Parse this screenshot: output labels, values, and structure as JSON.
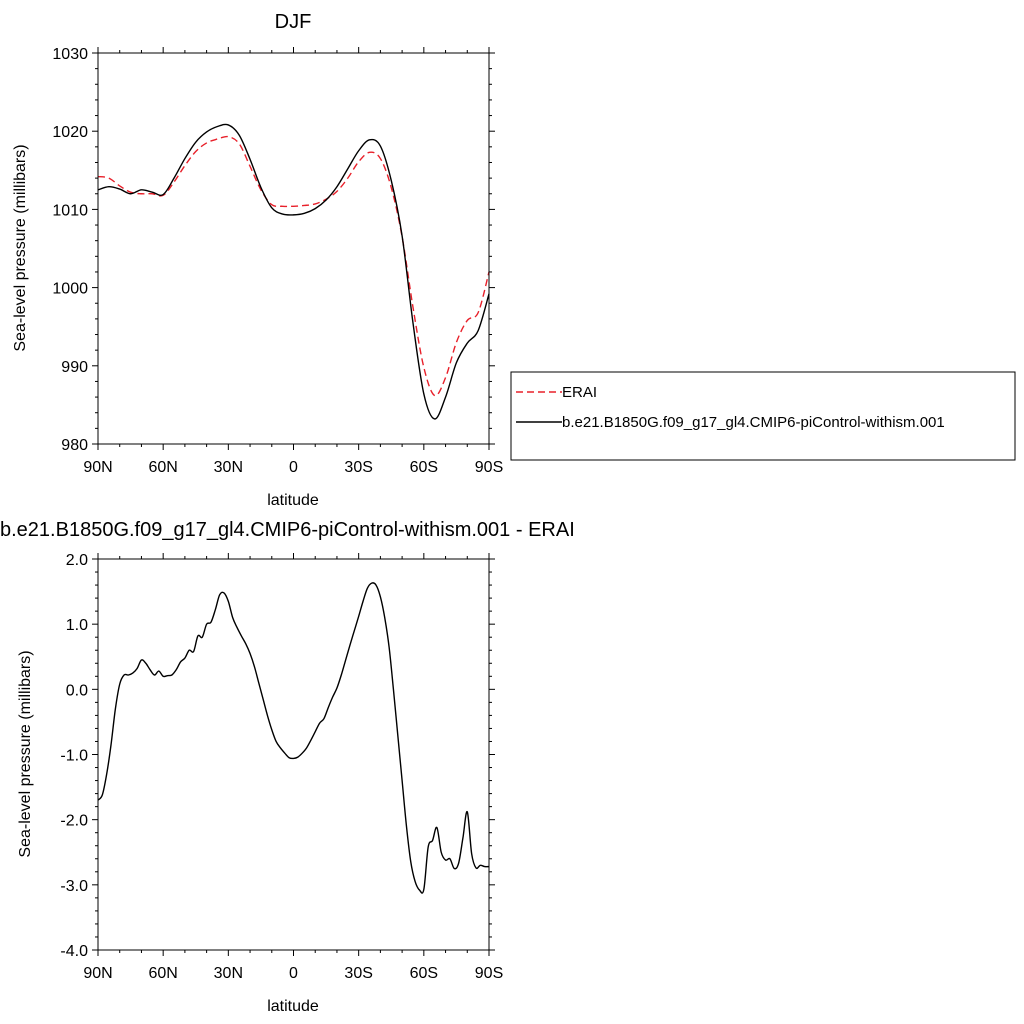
{
  "chart_data": [
    {
      "type": "line",
      "title": "DJF",
      "xlabel": "latitude",
      "ylabel": "Sea-level pressure (millibars)",
      "xlim": [
        90,
        -90
      ],
      "ylim": [
        980,
        1030
      ],
      "x_ticks": [
        90,
        60,
        30,
        0,
        -30,
        -60,
        -90
      ],
      "x_tick_labels": [
        "90N",
        "60N",
        "30N",
        "0",
        "30S",
        "60S",
        "90S"
      ],
      "y_ticks": [
        980,
        990,
        1000,
        1010,
        1020,
        1030
      ],
      "y_tick_labels": [
        "980",
        "990",
        "1000",
        "1010",
        "1020",
        "1030"
      ],
      "legend_position": "right",
      "series": [
        {
          "name": "ERAI",
          "color": "#e8202a",
          "dash": "dashed",
          "x": [
            90,
            85,
            80,
            75,
            70,
            65,
            60,
            55,
            50,
            45,
            40,
            35,
            30,
            25,
            20,
            15,
            10,
            5,
            0,
            -5,
            -10,
            -15,
            -20,
            -25,
            -30,
            -35,
            -40,
            -45,
            -50,
            -55,
            -60,
            -65,
            -70,
            -75,
            -80,
            -85,
            -90
          ],
          "y": [
            1014.2,
            1014.0,
            1013.0,
            1012.2,
            1012.0,
            1012.0,
            1011.8,
            1013.5,
            1015.6,
            1017.4,
            1018.5,
            1019.0,
            1019.3,
            1018.4,
            1015.5,
            1012.5,
            1010.6,
            1010.4,
            1010.4,
            1010.5,
            1010.7,
            1011.3,
            1012.3,
            1014.0,
            1016.1,
            1017.3,
            1016.5,
            1012.8,
            1006.5,
            997.5,
            989.8,
            986.2,
            988.5,
            993.0,
            995.8,
            996.8,
            1002.0
          ]
        },
        {
          "name": "b.e21.B1850G.f09_g17_gl4.CMIP6-piControl-withism.001",
          "color": "#000000",
          "dash": "solid",
          "x": [
            90,
            85,
            80,
            75,
            70,
            65,
            60,
            55,
            50,
            45,
            40,
            35,
            30,
            25,
            20,
            15,
            10,
            5,
            0,
            -5,
            -10,
            -15,
            -20,
            -25,
            -30,
            -35,
            -40,
            -45,
            -50,
            -55,
            -60,
            -65,
            -70,
            -75,
            -80,
            -85,
            -90
          ],
          "y": [
            1012.5,
            1012.9,
            1012.6,
            1012.0,
            1012.5,
            1012.2,
            1011.9,
            1014.0,
            1016.5,
            1018.6,
            1019.9,
            1020.6,
            1020.8,
            1019.5,
            1016.4,
            1012.8,
            1010.2,
            1009.4,
            1009.3,
            1009.5,
            1010.1,
            1011.2,
            1012.9,
            1015.2,
            1017.5,
            1018.9,
            1018.1,
            1013.7,
            1006.6,
            995.5,
            986.4,
            983.2,
            986.0,
            990.4,
            992.9,
            994.5,
            999.2
          ]
        }
      ]
    },
    {
      "type": "line",
      "title": "b.e21.B1850G.f09_g17_gl4.CMIP6-piControl-withism.001 - ERAI",
      "xlabel": "latitude",
      "ylabel": "Sea-level pressure (millibars)",
      "xlim": [
        90,
        -90
      ],
      "ylim": [
        -4.0,
        2.0
      ],
      "x_ticks": [
        90,
        60,
        30,
        0,
        -30,
        -60,
        -90
      ],
      "x_tick_labels": [
        "90N",
        "60N",
        "30N",
        "0",
        "30S",
        "60S",
        "90S"
      ],
      "y_ticks": [
        -4.0,
        -3.0,
        -2.0,
        -1.0,
        0.0,
        1.0,
        2.0
      ],
      "y_tick_labels": [
        "-4.0",
        "-3.0",
        "-2.0",
        "-1.0",
        "0.0",
        "1.0",
        "2.0"
      ],
      "series": [
        {
          "color": "#000000",
          "dash": "solid",
          "x": [
            90,
            88,
            86,
            84,
            82,
            80,
            78,
            76,
            74,
            72,
            70,
            68,
            66,
            64,
            62,
            60,
            58,
            56,
            54,
            52,
            50,
            48,
            46,
            44,
            42,
            40,
            38,
            36,
            34,
            32,
            30,
            28,
            26,
            24,
            22,
            20,
            18,
            16,
            14,
            12,
            10,
            8,
            6,
            4,
            2,
            0,
            -2,
            -4,
            -6,
            -8,
            -10,
            -12,
            -14,
            -16,
            -18,
            -20,
            -22,
            -24,
            -26,
            -28,
            -30,
            -32,
            -34,
            -36,
            -38,
            -40,
            -42,
            -44,
            -46,
            -48,
            -50,
            -52,
            -54,
            -56,
            -58,
            -60,
            -62,
            -64,
            -66,
            -68,
            -70,
            -72,
            -74,
            -76,
            -78,
            -80,
            -82,
            -84,
            -86,
            -88,
            -90
          ],
          "y": [
            -1.7,
            -1.62,
            -1.3,
            -0.85,
            -0.3,
            0.08,
            0.22,
            0.22,
            0.25,
            0.32,
            0.45,
            0.4,
            0.3,
            0.22,
            0.28,
            0.2,
            0.21,
            0.22,
            0.3,
            0.42,
            0.48,
            0.6,
            0.58,
            0.82,
            0.8,
            1.0,
            1.03,
            1.22,
            1.45,
            1.48,
            1.35,
            1.1,
            0.95,
            0.82,
            0.7,
            0.55,
            0.35,
            0.1,
            -0.15,
            -0.4,
            -0.62,
            -0.8,
            -0.9,
            -0.98,
            -1.05,
            -1.06,
            -1.04,
            -0.98,
            -0.9,
            -0.78,
            -0.65,
            -0.52,
            -0.45,
            -0.28,
            -0.12,
            0.02,
            0.22,
            0.45,
            0.68,
            0.9,
            1.12,
            1.35,
            1.55,
            1.63,
            1.6,
            1.42,
            1.1,
            0.65,
            0.0,
            -0.7,
            -1.4,
            -2.1,
            -2.65,
            -2.95,
            -3.08,
            -3.07,
            -2.42,
            -2.32,
            -2.12,
            -2.5,
            -2.62,
            -2.6,
            -2.75,
            -2.67,
            -2.28,
            -1.88,
            -2.52,
            -2.74,
            -2.7,
            -2.72,
            -2.72
          ]
        }
      ]
    }
  ],
  "colors": {
    "erai": "#e8202a",
    "model": "#000000",
    "frame": "#000000"
  }
}
